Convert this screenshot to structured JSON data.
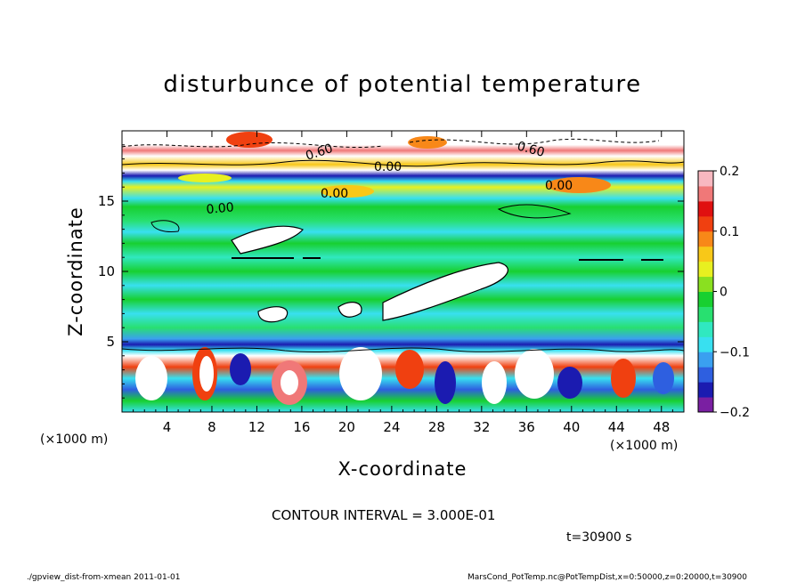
{
  "chart_data": {
    "type": "heatmap",
    "title": "disturbunce of potential temperature",
    "xlabel": "X-coordinate",
    "ylabel": "Z-coordinate",
    "x_unit_label": "(×1000 m)",
    "x_unit_label_right": "(×1000 m)",
    "xlim": [
      0,
      50
    ],
    "ylim": [
      0,
      20
    ],
    "x_ticks": [
      "4",
      "8",
      "12",
      "16",
      "20",
      "24",
      "28",
      "32",
      "36",
      "40",
      "44",
      "48"
    ],
    "x_tick_values": [
      4,
      8,
      12,
      16,
      20,
      24,
      28,
      32,
      36,
      40,
      44,
      48
    ],
    "y_ticks": [
      "5",
      "10",
      "15"
    ],
    "y_tick_values": [
      5,
      10,
      15
    ],
    "colorbar": {
      "min": -0.2,
      "max": 0.2,
      "ticks": [
        "0.2",
        "0.1",
        "0",
        "−0.1",
        "−0.2"
      ],
      "tick_values": [
        0.2,
        0.1,
        0,
        -0.1,
        -0.2
      ],
      "colors": [
        "#7a1fa2",
        "#1b1bb0",
        "#2e5fe0",
        "#3aa0f0",
        "#38e0f0",
        "#30e8c0",
        "#28e070",
        "#18d030",
        "#8ae020",
        "#e8f020",
        "#f8c818",
        "#f88818",
        "#f04010",
        "#e01010",
        "#f07878",
        "#f8b8c0"
      ]
    },
    "contour_labels": [
      "0.60",
      "0.60",
      "0.00",
      "0.00",
      "0.00",
      "0.00"
    ],
    "contour_interval_text": "CONTOUR INTERVAL = 3.000E-01",
    "time_text": "t=30900 s"
  },
  "footer": {
    "left": "./gpview_dist-from-xmean  2011-01-01",
    "right": "MarsCond_PotTemp.nc@PotTempDist,x=0:50000,z=0:20000,t=30900"
  }
}
